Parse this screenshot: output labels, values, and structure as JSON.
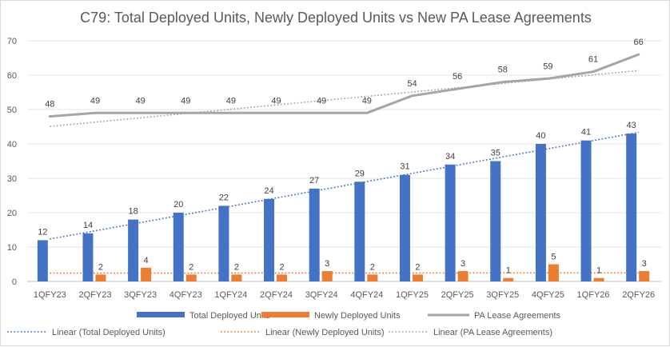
{
  "chart_data": {
    "type": "bar",
    "title": "C79: Total Deployed Units, Newly Deployed Units vs New PA Lease Agreements",
    "xlabel": "",
    "ylabel": "",
    "ylim": [
      0,
      70
    ],
    "yticks": [
      0,
      10,
      20,
      30,
      40,
      50,
      60,
      70
    ],
    "grid": true,
    "legend_position": "bottom",
    "categories": [
      "1QFY23",
      "2QFY23",
      "3QFY23",
      "4QFY23",
      "1QFY24",
      "2QFY24",
      "3QFY24",
      "4QFY24",
      "1QFY25",
      "2QFY25",
      "3QFY25",
      "4QFY25",
      "1QFY26",
      "2QFY26"
    ],
    "series": [
      {
        "name": "Total Deployed Units",
        "kind": "bar",
        "color": "#4472c4",
        "values": [
          12,
          14,
          18,
          20,
          22,
          24,
          27,
          29,
          31,
          34,
          35,
          40,
          41,
          43
        ]
      },
      {
        "name": "Newly Deployed Units",
        "kind": "bar",
        "color": "#ed7d31",
        "values": [
          null,
          2,
          4,
          2,
          2,
          2,
          3,
          2,
          2,
          3,
          1,
          5,
          1,
          3
        ]
      },
      {
        "name": "PA Lease Agreements",
        "kind": "line",
        "color": "#a5a5a5",
        "values": [
          48,
          49,
          49,
          49,
          49,
          49,
          49,
          49,
          54,
          56,
          58,
          59,
          61,
          66
        ]
      }
    ],
    "trendlines": [
      {
        "name": "Linear (Total Deployed Units)",
        "of": 0,
        "color": "#4472c4"
      },
      {
        "name": "Linear (Newly Deployed Units)",
        "of": 1,
        "color": "#ed7d31"
      },
      {
        "name": "Linear (PA Lease Agreements)",
        "of": 2,
        "color": "#a5a5a5"
      }
    ]
  }
}
